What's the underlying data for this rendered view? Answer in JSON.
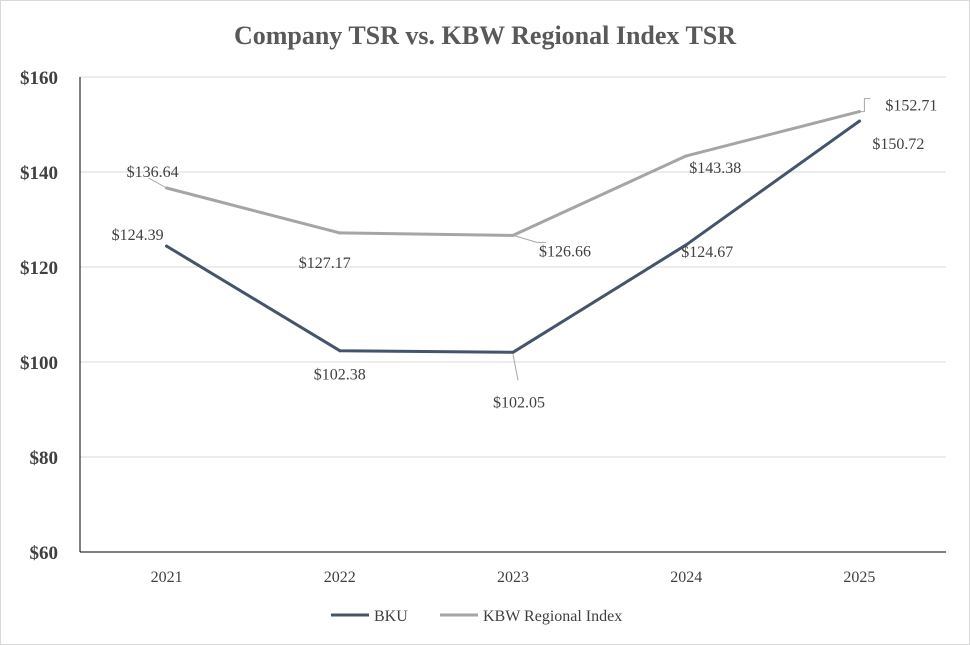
{
  "chart_data": {
    "type": "line",
    "title": "Company TSR vs. KBW Regional Index TSR",
    "categories": [
      "2021",
      "2022",
      "2023",
      "2024",
      "2025"
    ],
    "y_tick_labels": [
      "$60",
      "$80",
      "$100",
      "$120",
      "$140",
      "$160"
    ],
    "y_ticks": [
      60,
      80,
      100,
      120,
      140,
      160
    ],
    "ylim": [
      60,
      160
    ],
    "grid": true,
    "legend_position": "bottom",
    "series": [
      {
        "name": "BKU",
        "values": [
          124.39,
          102.38,
          102.05,
          124.67,
          150.72
        ],
        "labels": [
          "$124.39",
          "$102.38",
          "$102.05",
          "$124.67",
          "$150.72"
        ],
        "color": "#44546a"
      },
      {
        "name": "KBW Regional Index",
        "values": [
          136.64,
          127.17,
          126.66,
          143.38,
          152.71
        ],
        "labels": [
          "$136.64",
          "$127.17",
          "$126.66",
          "$143.38",
          "$152.71"
        ],
        "color": "#a5a5a5"
      }
    ]
  }
}
